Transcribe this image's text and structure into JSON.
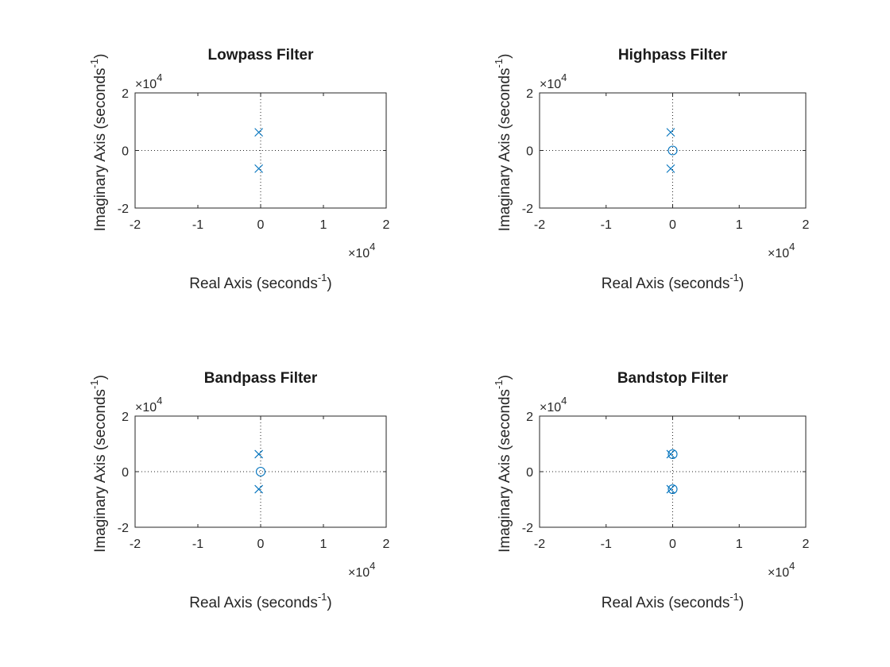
{
  "chart_data": [
    {
      "type": "scatter",
      "title": "Lowpass Filter",
      "xlabel": "Real Axis (seconds",
      "ylabel": "Imaginary Axis (seconds",
      "label_superscript": "-1",
      "xlim": [
        -20000,
        20000
      ],
      "ylim": [
        -20000,
        20000
      ],
      "xticks": [
        -20000,
        -10000,
        0,
        10000,
        20000
      ],
      "yticks": [
        -20000,
        0,
        20000
      ],
      "tick_labels_x": [
        "-2",
        "-1",
        "0",
        "1",
        "2"
      ],
      "tick_labels_y": [
        "-2",
        "0",
        "2"
      ],
      "exponent_label": "10",
      "exponent_power": "4",
      "exponent_prefix": "×",
      "poles": [
        {
          "x": -300,
          "y": 6300
        },
        {
          "x": -300,
          "y": -6300
        }
      ],
      "zeros": []
    },
    {
      "type": "scatter",
      "title": "Highpass Filter",
      "xlabel": "Real Axis (seconds",
      "ylabel": "Imaginary Axis (seconds",
      "label_superscript": "-1",
      "xlim": [
        -20000,
        20000
      ],
      "ylim": [
        -20000,
        20000
      ],
      "xticks": [
        -20000,
        -10000,
        0,
        10000,
        20000
      ],
      "yticks": [
        -20000,
        0,
        20000
      ],
      "tick_labels_x": [
        "-2",
        "-1",
        "0",
        "1",
        "2"
      ],
      "tick_labels_y": [
        "-2",
        "0",
        "2"
      ],
      "exponent_label": "10",
      "exponent_power": "4",
      "exponent_prefix": "×",
      "poles": [
        {
          "x": -300,
          "y": 6300
        },
        {
          "x": -300,
          "y": -6300
        }
      ],
      "zeros": [
        {
          "x": 0,
          "y": 0
        }
      ]
    },
    {
      "type": "scatter",
      "title": "Bandpass Filter",
      "xlabel": "Real Axis (seconds",
      "ylabel": "Imaginary Axis (seconds",
      "label_superscript": "-1",
      "xlim": [
        -20000,
        20000
      ],
      "ylim": [
        -20000,
        20000
      ],
      "xticks": [
        -20000,
        -10000,
        0,
        10000,
        20000
      ],
      "yticks": [
        -20000,
        0,
        20000
      ],
      "tick_labels_x": [
        "-2",
        "-1",
        "0",
        "1",
        "2"
      ],
      "tick_labels_y": [
        "-2",
        "0",
        "2"
      ],
      "exponent_label": "10",
      "exponent_power": "4",
      "exponent_prefix": "×",
      "poles": [
        {
          "x": -300,
          "y": 6300
        },
        {
          "x": -300,
          "y": -6300
        }
      ],
      "zeros": [
        {
          "x": 0,
          "y": 0
        }
      ]
    },
    {
      "type": "scatter",
      "title": "Bandstop Filter",
      "xlabel": "Real Axis (seconds",
      "ylabel": "Imaginary Axis (seconds",
      "label_superscript": "-1",
      "xlim": [
        -20000,
        20000
      ],
      "ylim": [
        -20000,
        20000
      ],
      "xticks": [
        -20000,
        -10000,
        0,
        10000,
        20000
      ],
      "yticks": [
        -20000,
        0,
        20000
      ],
      "tick_labels_x": [
        "-2",
        "-1",
        "0",
        "1",
        "2"
      ],
      "tick_labels_y": [
        "-2",
        "0",
        "2"
      ],
      "exponent_label": "10",
      "exponent_power": "4",
      "exponent_prefix": "×",
      "poles": [
        {
          "x": -300,
          "y": 6300
        },
        {
          "x": -300,
          "y": -6300
        }
      ],
      "zeros": [
        {
          "x": 0,
          "y": 6300
        },
        {
          "x": 0,
          "y": -6300
        }
      ]
    }
  ],
  "colors": {
    "marker": "#0072BD",
    "axes": "#262626",
    "title": "#1a1a1a"
  },
  "marker_styles": {
    "pole": "x-mark",
    "zero": "circle"
  }
}
